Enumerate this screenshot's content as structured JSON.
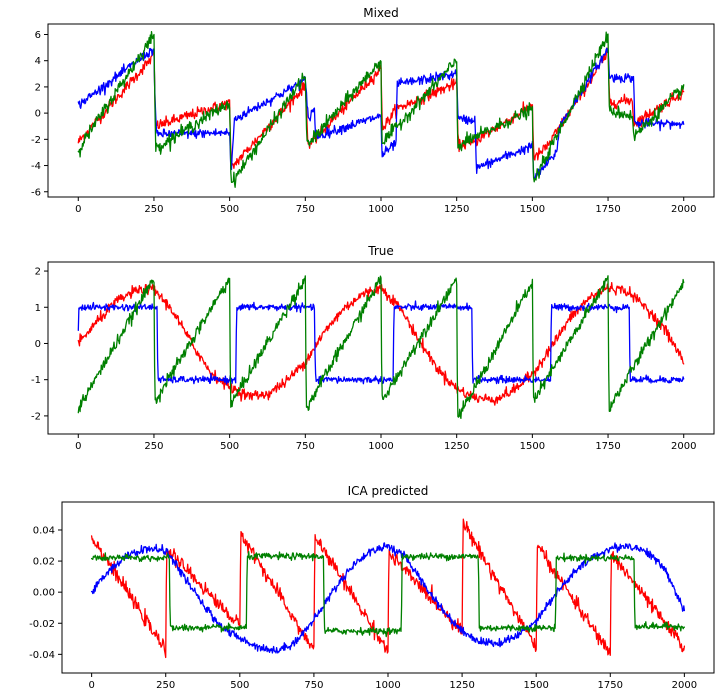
{
  "chart_data": [
    {
      "type": "line",
      "title": "Mixed",
      "xlabel": "",
      "ylabel": "",
      "xlim": [
        -100,
        2100
      ],
      "ylim": [
        -6.4,
        6.8
      ],
      "xticks": [
        0,
        250,
        500,
        750,
        1000,
        1250,
        1500,
        1750,
        2000
      ],
      "yticks": [
        -6,
        -4,
        -2,
        0,
        2,
        4,
        6
      ],
      "x_count": 2000,
      "series": [
        {
          "color": "#ff0000",
          "noise": 0.35,
          "samples": [
            [
              0,
              -2.2
            ],
            [
              250,
              4.4
            ],
            [
              255,
              -1.0
            ],
            [
              500,
              0.8
            ],
            [
              505,
              -4.2
            ],
            [
              520,
              -3.8
            ],
            [
              750,
              2.1
            ],
            [
              760,
              -2.5
            ],
            [
              1000,
              3.4
            ],
            [
              1005,
              -1.2
            ],
            [
              1050,
              0.3
            ],
            [
              1250,
              2.3
            ],
            [
              1255,
              -2.4
            ],
            [
              1300,
              -2.3
            ],
            [
              1500,
              0.6
            ],
            [
              1505,
              -3.5
            ],
            [
              1550,
              -2.5
            ],
            [
              1750,
              4.6
            ],
            [
              1755,
              0.8
            ],
            [
              1830,
              1.0
            ],
            [
              1835,
              -0.8
            ],
            [
              2000,
              1.6
            ]
          ]
        },
        {
          "color": "#0000ff",
          "noise": 0.3,
          "samples": [
            [
              0,
              0.6
            ],
            [
              250,
              4.9
            ],
            [
              252,
              2.0
            ],
            [
              258,
              -1.6
            ],
            [
              500,
              -1.5
            ],
            [
              505,
              -4.8
            ],
            [
              515,
              -0.5
            ],
            [
              750,
              2.5
            ],
            [
              760,
              -0.5
            ],
            [
              780,
              0.5
            ],
            [
              783,
              -1.8
            ],
            [
              1000,
              -0.2
            ],
            [
              1003,
              -3.2
            ],
            [
              1050,
              -2.3
            ],
            [
              1053,
              2.2
            ],
            [
              1250,
              3.0
            ],
            [
              1255,
              -0.5
            ],
            [
              1310,
              -0.5
            ],
            [
              1315,
              -4.2
            ],
            [
              1500,
              -2.5
            ],
            [
              1505,
              -5.0
            ],
            [
              1580,
              -3.0
            ],
            [
              1590,
              -1.0
            ],
            [
              1750,
              4.9
            ],
            [
              1755,
              2.7
            ],
            [
              1835,
              2.7
            ],
            [
              1838,
              -0.8
            ],
            [
              2000,
              -0.8
            ]
          ]
        },
        {
          "color": "#008000",
          "noise": 0.4,
          "samples": [
            [
              0,
              -2.8
            ],
            [
              250,
              6.0
            ],
            [
              255,
              -2.7
            ],
            [
              500,
              0.8
            ],
            [
              505,
              -5.4
            ],
            [
              750,
              2.9
            ],
            [
              755,
              -2.5
            ],
            [
              1000,
              4.0
            ],
            [
              1003,
              -2.3
            ],
            [
              1250,
              4.0
            ],
            [
              1253,
              -2.5
            ],
            [
              1500,
              0.3
            ],
            [
              1503,
              -5.3
            ],
            [
              1750,
              6.0
            ],
            [
              1753,
              0.2
            ],
            [
              1830,
              -0.2
            ],
            [
              1835,
              -1.8
            ],
            [
              2000,
              2.0
            ],
            [
              2001,
              -4.7
            ]
          ]
        }
      ]
    },
    {
      "type": "line",
      "title": "True",
      "xlabel": "",
      "ylabel": "",
      "xlim": [
        -100,
        2100
      ],
      "ylim": [
        -2.5,
        2.25
      ],
      "xticks": [
        0,
        250,
        500,
        750,
        1000,
        1250,
        1500,
        1750,
        2000
      ],
      "yticks": [
        -2,
        -1,
        0,
        1,
        2
      ],
      "x_count": 2000,
      "series": [
        {
          "color": "#ff0000",
          "noise": 0.12,
          "samples": [
            [
              0,
              0.0
            ],
            [
              62,
              0.6
            ],
            [
              125,
              1.15
            ],
            [
              187,
              1.45
            ],
            [
              250,
              1.5
            ],
            [
              312,
              0.9
            ],
            [
              375,
              0.0
            ],
            [
              437,
              -0.8
            ],
            [
              500,
              -1.2
            ],
            [
              562,
              -1.45
            ],
            [
              625,
              -1.4
            ],
            [
              687,
              -1.05
            ],
            [
              750,
              -0.5
            ],
            [
              812,
              0.3
            ],
            [
              875,
              0.95
            ],
            [
              937,
              1.35
            ],
            [
              1000,
              1.55
            ],
            [
              1062,
              1.0
            ],
            [
              1125,
              0.1
            ],
            [
              1187,
              -0.7
            ],
            [
              1250,
              -1.25
            ],
            [
              1312,
              -1.5
            ],
            [
              1375,
              -1.55
            ],
            [
              1437,
              -1.3
            ],
            [
              1500,
              -0.85
            ],
            [
              1562,
              -0.1
            ],
            [
              1625,
              0.7
            ],
            [
              1687,
              1.25
            ],
            [
              1750,
              1.55
            ],
            [
              1812,
              1.45
            ],
            [
              1875,
              1.0
            ],
            [
              1937,
              0.4
            ],
            [
              2000,
              -0.5
            ]
          ]
        },
        {
          "color": "#0000ff",
          "noise": 0.08,
          "samples": [
            [
              0,
              0.3
            ],
            [
              2,
              1.0
            ],
            [
              260,
              1.0
            ],
            [
              263,
              -1.0
            ],
            [
              520,
              -1.0
            ],
            [
              523,
              1.0
            ],
            [
              780,
              1.0
            ],
            [
              783,
              -1.0
            ],
            [
              1040,
              -1.0
            ],
            [
              1043,
              1.0
            ],
            [
              1300,
              1.0
            ],
            [
              1303,
              -1.0
            ],
            [
              1560,
              -1.0
            ],
            [
              1563,
              1.0
            ],
            [
              1820,
              1.0
            ],
            [
              1823,
              -1.0
            ],
            [
              2000,
              -1.0
            ]
          ]
        },
        {
          "color": "#008000",
          "noise": 0.14,
          "samples": [
            [
              0,
              -1.8
            ],
            [
              250,
              1.8
            ],
            [
              253,
              -1.6
            ],
            [
              500,
              1.8
            ],
            [
              503,
              -1.7
            ],
            [
              750,
              1.8
            ],
            [
              753,
              -1.8
            ],
            [
              1000,
              1.8
            ],
            [
              1003,
              -1.6
            ],
            [
              1250,
              1.8
            ],
            [
              1253,
              -2.1
            ],
            [
              1500,
              1.7
            ],
            [
              1503,
              -1.6
            ],
            [
              1750,
              1.8
            ],
            [
              1753,
              -1.8
            ],
            [
              2000,
              1.7
            ],
            [
              2001,
              -1.6
            ]
          ]
        }
      ]
    },
    {
      "type": "line",
      "title": "ICA predicted",
      "xlabel": "",
      "ylabel": "",
      "xlim": [
        -100,
        2100
      ],
      "ylim": [
        -0.052,
        0.058
      ],
      "xticks": [
        0,
        250,
        500,
        750,
        1000,
        1250,
        1500,
        1750,
        2000
      ],
      "yticks": [
        -0.04,
        -0.02,
        0.0,
        0.02,
        0.04
      ],
      "x_count": 2000,
      "series": [
        {
          "color": "#ff0000",
          "noise": 0.0035,
          "samples": [
            [
              0,
              0.036
            ],
            [
              250,
              -0.038
            ],
            [
              253,
              0.028
            ],
            [
              500,
              -0.022
            ],
            [
              503,
              0.038
            ],
            [
              750,
              -0.038
            ],
            [
              753,
              0.036
            ],
            [
              1000,
              -0.038
            ],
            [
              1003,
              0.025
            ],
            [
              1250,
              -0.025
            ],
            [
              1253,
              0.045
            ],
            [
              1500,
              -0.036
            ],
            [
              1503,
              0.03
            ],
            [
              1750,
              -0.04
            ],
            [
              1753,
              0.025
            ],
            [
              2000,
              -0.036
            ],
            [
              2001,
              0.038
            ]
          ]
        },
        {
          "color": "#0000ff",
          "noise": 0.0022,
          "samples": [
            [
              0,
              0.0
            ],
            [
              62,
              0.015
            ],
            [
              125,
              0.024
            ],
            [
              187,
              0.028
            ],
            [
              250,
              0.027
            ],
            [
              312,
              0.01
            ],
            [
              375,
              -0.008
            ],
            [
              437,
              -0.022
            ],
            [
              500,
              -0.03
            ],
            [
              562,
              -0.035
            ],
            [
              625,
              -0.038
            ],
            [
              687,
              -0.032
            ],
            [
              750,
              -0.018
            ],
            [
              812,
              0.0
            ],
            [
              875,
              0.016
            ],
            [
              937,
              0.026
            ],
            [
              1000,
              0.03
            ],
            [
              1062,
              0.022
            ],
            [
              1125,
              0.004
            ],
            [
              1187,
              -0.012
            ],
            [
              1250,
              -0.025
            ],
            [
              1312,
              -0.032
            ],
            [
              1375,
              -0.033
            ],
            [
              1437,
              -0.028
            ],
            [
              1500,
              -0.018
            ],
            [
              1562,
              -0.002
            ],
            [
              1625,
              0.012
            ],
            [
              1687,
              0.022
            ],
            [
              1750,
              0.028
            ],
            [
              1812,
              0.03
            ],
            [
              1875,
              0.026
            ],
            [
              1937,
              0.014
            ],
            [
              2000,
              -0.012
            ]
          ]
        },
        {
          "color": "#008000",
          "noise": 0.0018,
          "samples": [
            [
              0,
              0.02
            ],
            [
              2,
              0.022
            ],
            [
              262,
              0.022
            ],
            [
              265,
              -0.023
            ],
            [
              522,
              -0.023
            ],
            [
              525,
              0.023
            ],
            [
              782,
              0.023
            ],
            [
              785,
              -0.025
            ],
            [
              1045,
              -0.025
            ],
            [
              1048,
              0.023
            ],
            [
              1305,
              0.023
            ],
            [
              1308,
              -0.023
            ],
            [
              1565,
              -0.023
            ],
            [
              1568,
              0.022
            ],
            [
              1830,
              0.022
            ],
            [
              1833,
              -0.022
            ],
            [
              2000,
              -0.022
            ]
          ]
        }
      ]
    }
  ]
}
